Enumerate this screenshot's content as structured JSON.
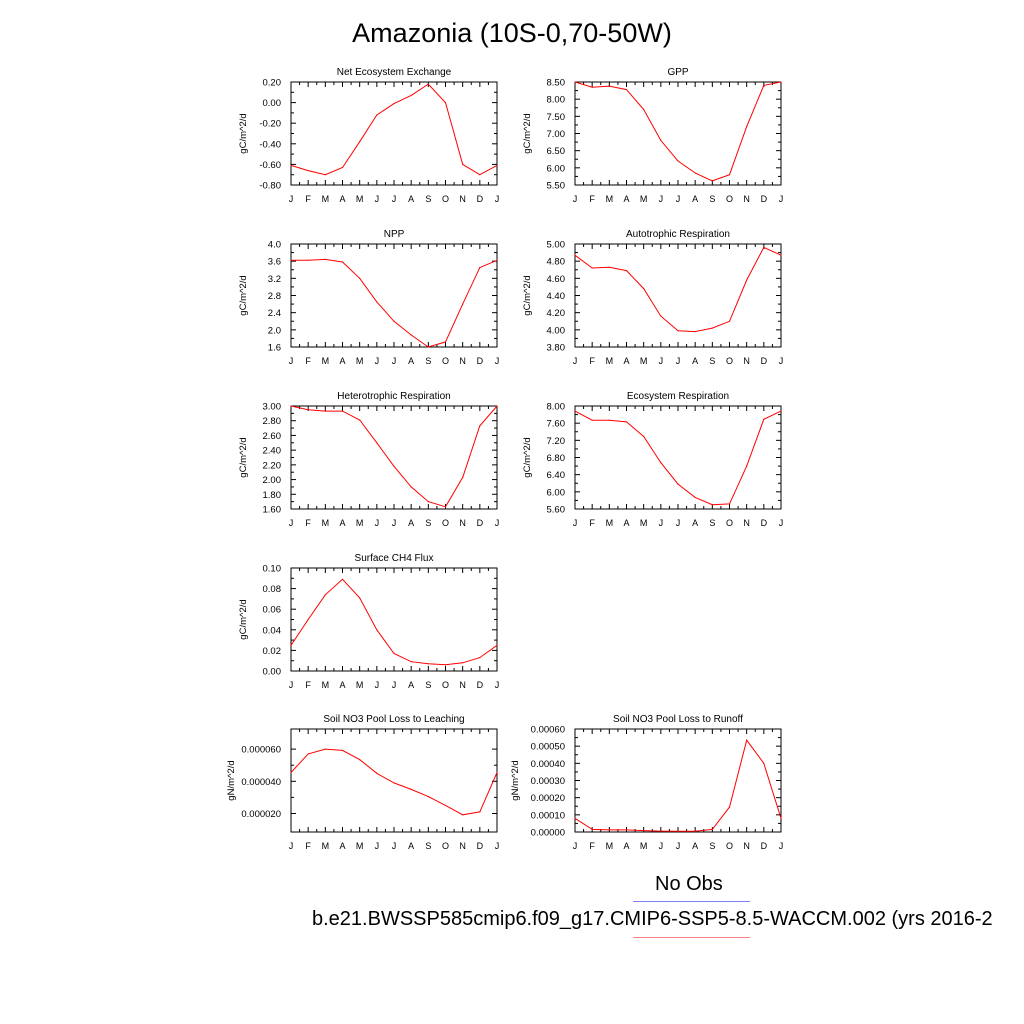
{
  "title": "Amazonia (10S-0,70-50W)",
  "legend": {
    "obs_label": "No Obs",
    "model_label": "b.e21.BWSSP585cmip6.f09_g17.CMIP6-SSP5-8.5-WACCM.002 (yrs 2016-2",
    "obs_color": "#8080ff",
    "model_color": "#ff8080"
  },
  "line_color": "#ff0000",
  "chart_data": [
    {
      "type": "line",
      "title": "Net Ecosystem Exchange",
      "ylabel": "gC/m^2/d",
      "categories": [
        "J",
        "F",
        "M",
        "A",
        "M",
        "J",
        "J",
        "A",
        "S",
        "O",
        "N",
        "D",
        "J"
      ],
      "values": [
        -0.61,
        -0.66,
        -0.7,
        -0.63,
        -0.38,
        -0.12,
        -0.01,
        0.07,
        0.18,
        0.0,
        -0.6,
        -0.7,
        -0.61
      ],
      "ylim": [
        -0.8,
        0.2
      ],
      "yticks": [
        "-0.80",
        "-0.60",
        "-0.40",
        "-0.20",
        "0.00",
        "0.20"
      ],
      "ytick_values": [
        -0.8,
        -0.6,
        -0.4,
        -0.2,
        0.0,
        0.2
      ]
    },
    {
      "type": "line",
      "title": "GPP",
      "ylabel": "gC/m^2/d",
      "categories": [
        "J",
        "F",
        "M",
        "A",
        "M",
        "J",
        "J",
        "A",
        "S",
        "O",
        "N",
        "D",
        "J"
      ],
      "values": [
        8.5,
        8.35,
        8.38,
        8.28,
        7.7,
        6.8,
        6.2,
        5.85,
        5.62,
        5.8,
        7.2,
        8.4,
        8.5
      ],
      "ylim": [
        5.5,
        8.5
      ],
      "yticks": [
        "5.50",
        "6.00",
        "6.50",
        "7.00",
        "7.50",
        "8.00",
        "8.50"
      ],
      "ytick_values": [
        5.5,
        6.0,
        6.5,
        7.0,
        7.5,
        8.0,
        8.5
      ]
    },
    {
      "type": "line",
      "title": "NPP",
      "ylabel": "gC/m^2/d",
      "categories": [
        "J",
        "F",
        "M",
        "A",
        "M",
        "J",
        "J",
        "A",
        "S",
        "O",
        "N",
        "D",
        "J"
      ],
      "values": [
        3.62,
        3.62,
        3.64,
        3.58,
        3.2,
        2.65,
        2.2,
        1.88,
        1.6,
        1.72,
        2.6,
        3.45,
        3.62
      ],
      "ylim": [
        1.6,
        4.0
      ],
      "yticks": [
        "1.6",
        "2.0",
        "2.4",
        "2.8",
        "3.2",
        "3.6",
        "4.0"
      ],
      "ytick_values": [
        1.6,
        2.0,
        2.4,
        2.8,
        3.2,
        3.6,
        4.0
      ]
    },
    {
      "type": "line",
      "title": "Autotrophic Respiration",
      "ylabel": "gC/m^2/d",
      "categories": [
        "J",
        "F",
        "M",
        "A",
        "M",
        "J",
        "J",
        "A",
        "S",
        "O",
        "N",
        "D",
        "J"
      ],
      "values": [
        4.87,
        4.72,
        4.73,
        4.69,
        4.48,
        4.16,
        3.99,
        3.98,
        4.02,
        4.1,
        4.58,
        4.96,
        4.87
      ],
      "ylim": [
        3.8,
        5.0
      ],
      "yticks": [
        "3.80",
        "4.00",
        "4.20",
        "4.40",
        "4.60",
        "4.80",
        "5.00"
      ],
      "ytick_values": [
        3.8,
        4.0,
        4.2,
        4.4,
        4.6,
        4.8,
        5.0
      ]
    },
    {
      "type": "line",
      "title": "Heterotrophic Respiration",
      "ylabel": "gC/m^2/d",
      "categories": [
        "J",
        "F",
        "M",
        "A",
        "M",
        "J",
        "J",
        "A",
        "S",
        "O",
        "N",
        "D",
        "J"
      ],
      "values": [
        3.0,
        2.95,
        2.93,
        2.93,
        2.81,
        2.5,
        2.18,
        1.9,
        1.7,
        1.63,
        2.03,
        2.73,
        3.0
      ],
      "ylim": [
        1.6,
        3.0
      ],
      "yticks": [
        "1.60",
        "1.80",
        "2.00",
        "2.20",
        "2.40",
        "2.60",
        "2.80",
        "3.00"
      ],
      "ytick_values": [
        1.6,
        1.8,
        2.0,
        2.2,
        2.4,
        2.6,
        2.8,
        3.0
      ]
    },
    {
      "type": "line",
      "title": "Ecosystem Respiration",
      "ylabel": "gC/m^2/d",
      "categories": [
        "J",
        "F",
        "M",
        "A",
        "M",
        "J",
        "J",
        "A",
        "S",
        "O",
        "N",
        "D",
        "J"
      ],
      "values": [
        7.88,
        7.67,
        7.67,
        7.63,
        7.29,
        6.68,
        6.18,
        5.87,
        5.7,
        5.72,
        6.6,
        7.69,
        7.88
      ],
      "ylim": [
        5.6,
        8.0
      ],
      "yticks": [
        "5.60",
        "6.00",
        "6.40",
        "6.80",
        "7.20",
        "7.60",
        "8.00"
      ],
      "ytick_values": [
        5.6,
        6.0,
        6.4,
        6.8,
        7.2,
        7.6,
        8.0
      ]
    },
    {
      "type": "line",
      "title": "Surface CH4 Flux",
      "ylabel": "gC/m^2/d",
      "categories": [
        "J",
        "F",
        "M",
        "A",
        "M",
        "J",
        "J",
        "A",
        "S",
        "O",
        "N",
        "D",
        "J"
      ],
      "values": [
        0.025,
        0.05,
        0.074,
        0.089,
        0.071,
        0.04,
        0.017,
        0.009,
        0.007,
        0.006,
        0.008,
        0.013,
        0.025
      ],
      "ylim": [
        0.0,
        0.1
      ],
      "yticks": [
        "0.00",
        "0.02",
        "0.04",
        "0.06",
        "0.08",
        "0.10"
      ],
      "ytick_values": [
        0.0,
        0.02,
        0.04,
        0.06,
        0.08,
        0.1
      ]
    },
    {
      "type": "line",
      "title": "Soil NO3 Pool Loss to Leaching",
      "ylabel": "gN/m^2/d",
      "categories": [
        "J",
        "F",
        "M",
        "A",
        "M",
        "J",
        "J",
        "A",
        "S",
        "O",
        "N",
        "D",
        "J"
      ],
      "values": [
        4.55e-05,
        5.7e-05,
        6e-05,
        5.92e-05,
        5.35e-05,
        4.5e-05,
        3.9e-05,
        3.5e-05,
        3.05e-05,
        2.5e-05,
        1.92e-05,
        2.1e-05,
        4.55e-05
      ],
      "ylim": [
        8.5e-06,
        7.25e-05
      ],
      "yticks": [
        "0.000020",
        "0.000040",
        "0.000060"
      ],
      "ytick_values": [
        2e-05,
        4e-05,
        6e-05
      ]
    },
    {
      "type": "line",
      "title": "Soil NO3 Pool Loss to Runoff",
      "ylabel": "gN/m^2/d",
      "categories": [
        "J",
        "F",
        "M",
        "A",
        "M",
        "J",
        "J",
        "A",
        "S",
        "O",
        "N",
        "D",
        "J"
      ],
      "values": [
        8e-05,
        1.5e-05,
        1.2e-05,
        1.2e-05,
        8e-06,
        5e-06,
        4e-06,
        4e-06,
        1.5e-05,
        0.000145,
        0.000535,
        0.0004,
        8e-05
      ],
      "ylim": [
        0.0,
        0.0006
      ],
      "yticks": [
        "0.00000",
        "0.00010",
        "0.00020",
        "0.00030",
        "0.00040",
        "0.00050",
        "0.00060"
      ],
      "ytick_values": [
        0.0,
        0.0001,
        0.0002,
        0.0003,
        0.0004,
        0.0005,
        0.0006
      ]
    }
  ]
}
